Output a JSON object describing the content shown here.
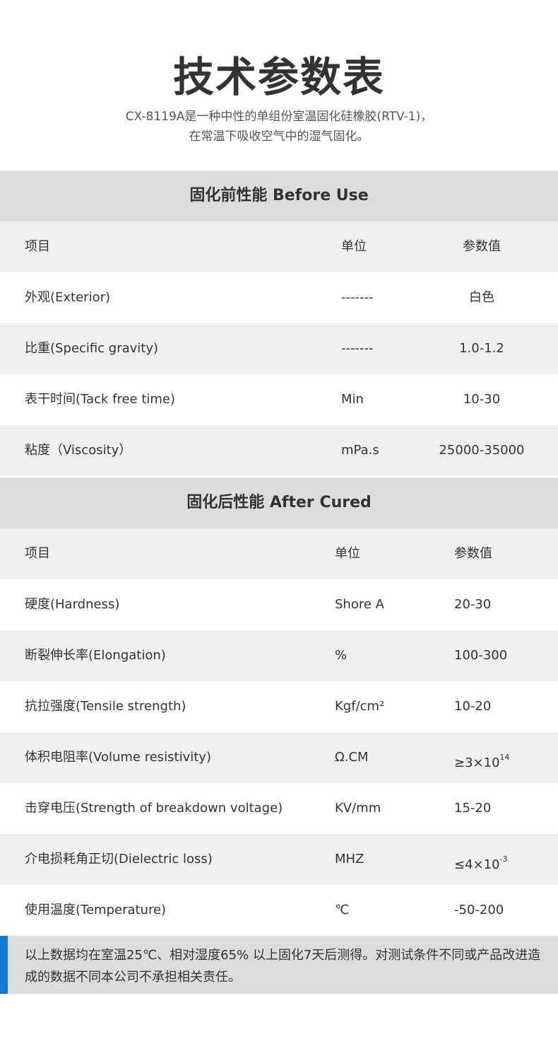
{
  "title": "技术参数表",
  "subtitle_line1": "CX-8119A是一种中性的单组份室温固化硅橡胶(RTV-1)，",
  "subtitle_line2": "在常温下吸收空气中的湿气固化。",
  "before": {
    "heading": "固化前性能 Before Use",
    "columns": [
      "项目",
      "单位",
      "参数值"
    ],
    "rows": [
      [
        "外观(Exterior)",
        "-------",
        "白色"
      ],
      [
        "比重(Specific gravity)",
        "-------",
        "1.0-1.2"
      ],
      [
        "表干时间(Tack free time)",
        "Min",
        "10-30"
      ],
      [
        "粘度（Viscosity）",
        "mPa.s",
        "25000-35000"
      ]
    ]
  },
  "after": {
    "heading": "固化后性能 After Cured",
    "columns": [
      "项目",
      "单位",
      "参数值"
    ],
    "rows": [
      [
        "硬度(Hardness)",
        "Shore A",
        "20-30"
      ],
      [
        "断裂伸长率(Elongation)",
        "%",
        "100-300"
      ],
      [
        "抗拉强度(Tensile strength)",
        "Kgf/cm²",
        "10-20"
      ],
      [
        "体积电阻率(Volume resistivity)",
        "Ω.CM",
        "≥3×10",
        "14"
      ],
      [
        "击穿电压(Strength of breakdown voltage)",
        "KV/mm",
        "15-20"
      ],
      [
        "介电损耗角正切(Dielectric loss)",
        "MHZ",
        "≤4×10",
        "-3"
      ],
      [
        "使用温度(Temperature)",
        "℃",
        "-50-200"
      ]
    ]
  },
  "note": "以上数据均在室温25℃、相对湿度65% 以上固化7天后测得。对测试条件不同或产品改进造成的数据不同本公司不承担相关责任。",
  "colors": {
    "accent": "#1479d4",
    "section_bg": "#dcdcdc",
    "alt_row": "#f0f0f0"
  }
}
